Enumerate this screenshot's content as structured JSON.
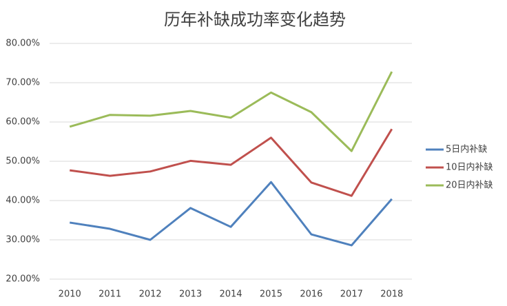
{
  "chart_data": {
    "type": "line",
    "title": "历年补缺成功率变化趋势",
    "categories": [
      "2010",
      "2011",
      "2012",
      "2013",
      "2014",
      "2015",
      "2016",
      "2017",
      "2018"
    ],
    "series": [
      {
        "name": "5日内补缺",
        "color": "#4f81bd",
        "values": [
          34.4,
          32.8,
          30.0,
          38.1,
          33.3,
          44.7,
          31.4,
          28.6,
          40.4
        ]
      },
      {
        "name": "10日内补缺",
        "color": "#c0504d",
        "values": [
          47.7,
          46.3,
          47.4,
          50.1,
          49.1,
          56.0,
          44.6,
          41.2,
          58.2
        ]
      },
      {
        "name": "20日内补缺",
        "color": "#9bbb59",
        "values": [
          58.8,
          61.8,
          61.6,
          62.8,
          61.1,
          67.5,
          62.5,
          52.6,
          72.8
        ]
      }
    ],
    "ylim": [
      20,
      80
    ],
    "yticks": [
      {
        "value": 20,
        "label": "20.00%"
      },
      {
        "value": 30,
        "label": "30.00%"
      },
      {
        "value": 40,
        "label": "40.00%"
      },
      {
        "value": 50,
        "label": "50.00%"
      },
      {
        "value": 60,
        "label": "60.00%"
      },
      {
        "value": 70,
        "label": "70.00%"
      },
      {
        "value": 80,
        "label": "80.00%"
      }
    ],
    "grid": true,
    "legend": "right"
  }
}
